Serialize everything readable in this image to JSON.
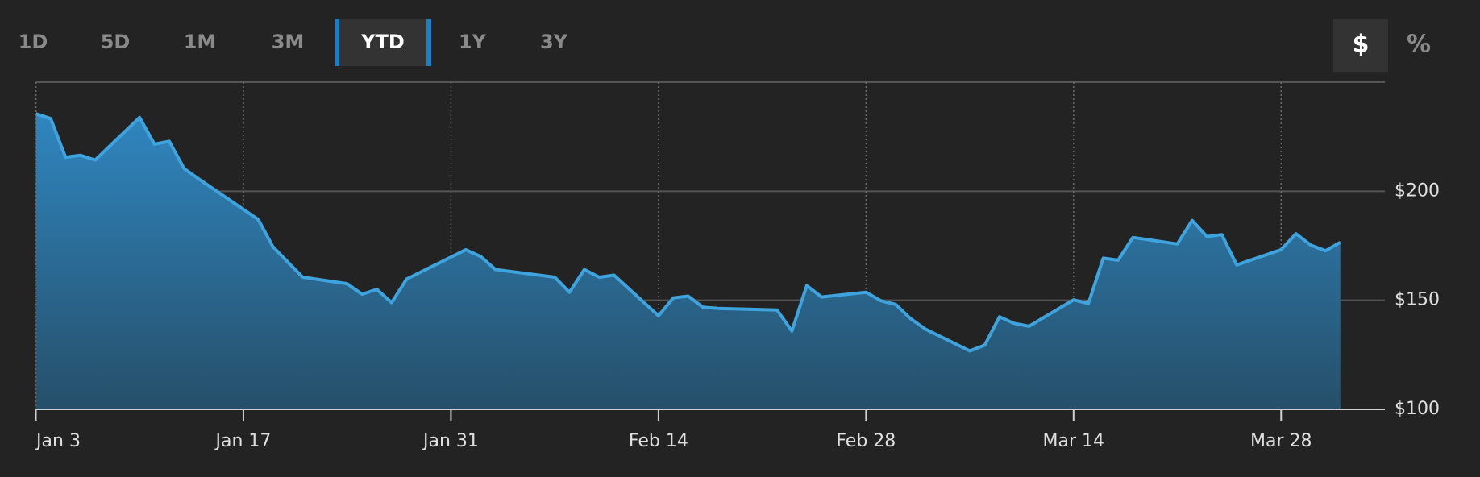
{
  "tabs": [
    {
      "label": "1D"
    },
    {
      "label": "5D"
    },
    {
      "label": "1M"
    },
    {
      "label": "3M"
    },
    {
      "label": "YTD",
      "active": true
    },
    {
      "label": "1Y"
    },
    {
      "label": "3Y"
    }
  ],
  "units": [
    {
      "label": "$",
      "active": true
    },
    {
      "label": "%"
    }
  ],
  "chart_data": {
    "type": "area",
    "x": [
      3,
      4,
      5,
      6,
      7,
      10,
      11,
      12,
      13,
      14,
      18,
      19,
      20,
      21,
      24,
      25,
      26,
      27,
      28,
      32,
      33,
      34,
      38,
      39,
      40,
      41,
      42,
      45,
      46,
      47,
      48,
      49,
      53,
      54,
      55,
      56,
      59,
      60,
      61,
      62,
      63,
      66,
      67,
      68,
      69,
      70,
      73,
      74,
      75,
      76,
      77,
      80,
      81,
      82,
      83,
      84,
      87,
      88,
      89,
      90,
      91
    ],
    "values": [
      235.5,
      233.3,
      215.6,
      216.5,
      214.3,
      233.8,
      221.6,
      222.9,
      210.4,
      205.6,
      187.0,
      174.5,
      167.5,
      160.6,
      157.6,
      152.8,
      155.0,
      148.9,
      159.7,
      173.2,
      170.1,
      164.1,
      160.6,
      153.7,
      164.1,
      160.6,
      161.5,
      142.9,
      151.1,
      151.9,
      146.8,
      146.3,
      145.5,
      135.9,
      156.7,
      151.5,
      153.7,
      149.8,
      148.1,
      141.6,
      136.8,
      126.8,
      129.4,
      142.4,
      139.4,
      138.1,
      150.2,
      148.5,
      169.3,
      168.4,
      178.8,
      175.8,
      186.6,
      179.2,
      180.1,
      166.2,
      173.2,
      180.5,
      175.3,
      172.7,
      176.6
    ],
    "color": "#3fa3dd",
    "xlim": [
      3,
      94
    ],
    "xticks": [
      {
        "value": 3,
        "label": "Jan 3"
      },
      {
        "value": 17,
        "label": "Jan 17"
      },
      {
        "value": 31,
        "label": "Jan 31"
      },
      {
        "value": 45,
        "label": "Feb 14"
      },
      {
        "value": 59,
        "label": "Feb 28"
      },
      {
        "value": 73,
        "label": "Mar 14"
      },
      {
        "value": 87,
        "label": "Mar 28"
      }
    ],
    "ylim": [
      100,
      250
    ],
    "yticks": [
      {
        "value": 100,
        "label": "$100"
      },
      {
        "value": 150,
        "label": "$150"
      },
      {
        "value": 200,
        "label": "$200"
      }
    ],
    "grid": true
  }
}
